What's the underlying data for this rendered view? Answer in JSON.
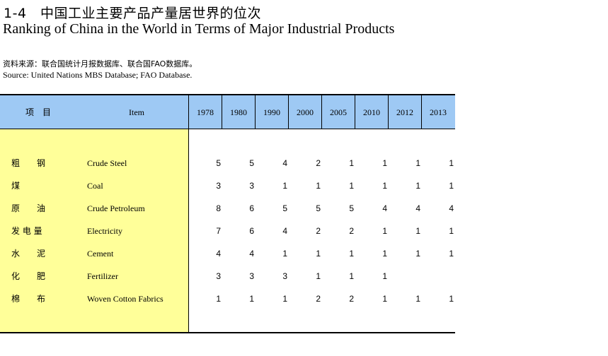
{
  "title": {
    "number_cn": "1-4　中国工业主要产品产量居世界的位次",
    "en": "Ranking of China in the World in Terms of Major Industrial Products"
  },
  "source": {
    "cn": "资料来源：联合国统计月报数据库、联合国FAO数据库。",
    "en": "Source:  United Nations MBS Database; FAO Database."
  },
  "table": {
    "header": {
      "item_cn": "项目",
      "item_en": "Item",
      "years": [
        "1978",
        "1980",
        "1990",
        "2000",
        "2005",
        "2010",
        "2012",
        "2013"
      ]
    },
    "rows": [
      {
        "cn": "粗　　钢",
        "en": "Crude Steel",
        "values": [
          "5",
          "5",
          "4",
          "2",
          "1",
          "1",
          "1",
          "1"
        ]
      },
      {
        "cn": "煤",
        "en": "Coal",
        "values": [
          "3",
          "3",
          "1",
          "1",
          "1",
          "1",
          "1",
          "1"
        ]
      },
      {
        "cn": "原　　油",
        "en": "Crude Petroleum",
        "values": [
          "8",
          "6",
          "5",
          "5",
          "5",
          "4",
          "4",
          "4"
        ]
      },
      {
        "cn": "发 电 量",
        "en": "Electricity",
        "values": [
          "7",
          "6",
          "4",
          "2",
          "2",
          "1",
          "1",
          "1"
        ]
      },
      {
        "cn": "水　　泥",
        "en": "Cement",
        "values": [
          "4",
          "4",
          "1",
          "1",
          "1",
          "1",
          "1",
          "1"
        ]
      },
      {
        "cn": "化　　肥",
        "en": "Fertilizer",
        "values": [
          "3",
          "3",
          "3",
          "1",
          "1",
          "1",
          "",
          ""
        ]
      },
      {
        "cn": "棉　　布",
        "en": "Woven Cotton Fabrics",
        "values": [
          "1",
          "1",
          "1",
          "2",
          "2",
          "1",
          "1",
          "1"
        ]
      }
    ]
  },
  "colors": {
    "header_bg": "#9ec9f4",
    "item_column_bg": "#ffff99"
  }
}
